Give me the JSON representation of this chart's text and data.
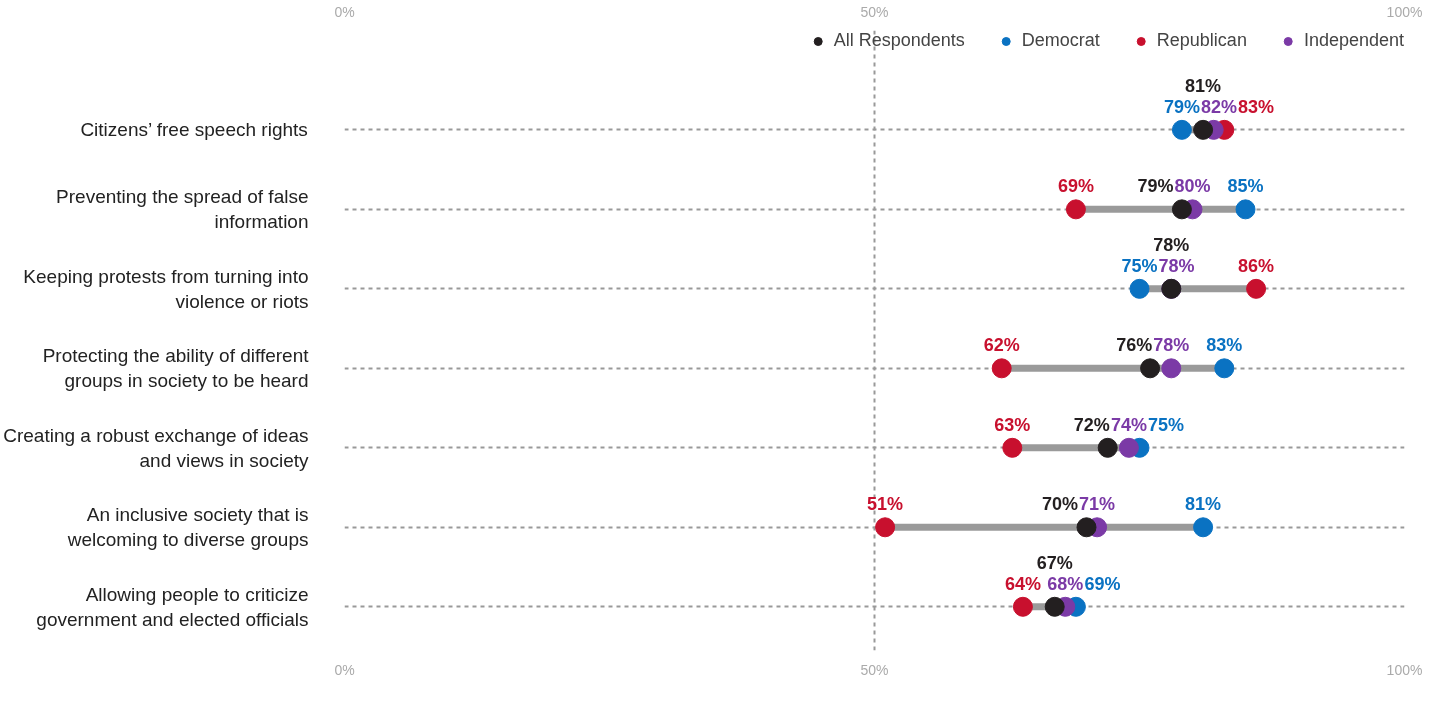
{
  "chart_data": {
    "type": "scatter",
    "orientation": "horizontal",
    "categories": [
      "Citizens’ free speech rights",
      "Preventing the spread of false information",
      "Keeping protests from turning into violence or riots",
      "Protecting the ability of different groups in society to be heard",
      "Creating a robust exchange of ideas and views in society",
      "An inclusive society that is welcoming to diverse groups",
      "Allowing people to criticize government and elected officials"
    ],
    "series": [
      {
        "name": "All Respondents",
        "color": "#231f20",
        "values": [
          81,
          79,
          78,
          76,
          72,
          70,
          67
        ],
        "value_labels": [
          "81%",
          "79%",
          "78%",
          "76%",
          "72%",
          "70%",
          "67%"
        ]
      },
      {
        "name": "Democrat",
        "color": "#0a72c2",
        "values": [
          79,
          85,
          75,
          83,
          75,
          81,
          69
        ],
        "value_labels": [
          "79%",
          "85%",
          "75%",
          "83%",
          "75%",
          "81%",
          "69%"
        ]
      },
      {
        "name": "Republican",
        "color": "#c8102e",
        "values": [
          83,
          69,
          86,
          62,
          63,
          51,
          64
        ],
        "value_labels": [
          "83%",
          "69%",
          "86%",
          "62%",
          "63%",
          "51%",
          "64%"
        ]
      },
      {
        "name": "Independent",
        "color": "#7b3aa6",
        "values": [
          82,
          80,
          78,
          78,
          74,
          71,
          68
        ],
        "value_labels": [
          "82%",
          "80%",
          "78%",
          "78%",
          "74%",
          "71%",
          "68%"
        ]
      }
    ],
    "xlim": [
      0,
      100
    ],
    "xticks": [
      {
        "value": 0,
        "label": "0%"
      },
      {
        "value": 50,
        "label": "50%"
      },
      {
        "value": 100,
        "label": "100%"
      }
    ],
    "x2lim": [
      0,
      100
    ],
    "x2ticks": [
      {
        "value": 0,
        "label": "0%"
      },
      {
        "value": 50,
        "label": "50%"
      },
      {
        "value": 100,
        "label": "100%"
      }
    ],
    "grid": true,
    "legend": "top right",
    "marker": "circle"
  }
}
